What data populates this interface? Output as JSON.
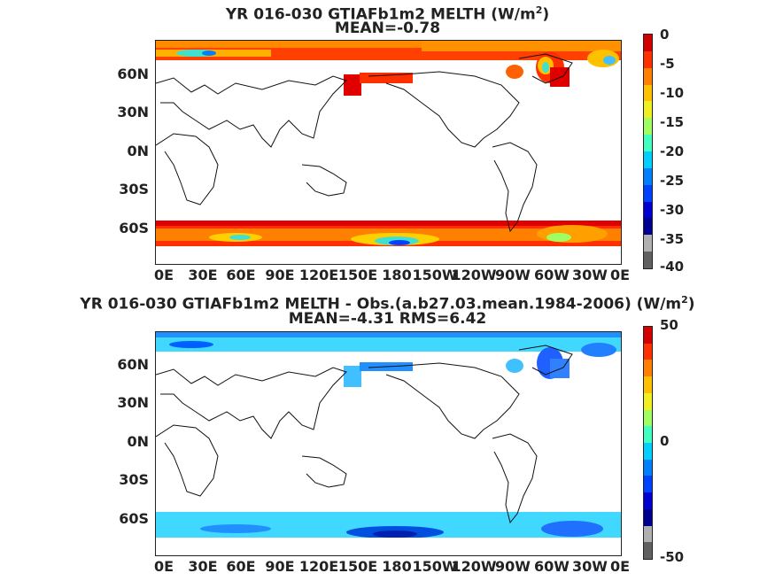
{
  "panels": [
    {
      "title_pre": "YR 016-030 GTIAFb1m2  MELTH (W/m",
      "title_sup": "2",
      "title_post": ")",
      "subtitle": "MEAN=-0.78",
      "colorbar": {
        "ticks": [
          "0",
          "-5",
          "-10",
          "-15",
          "-20",
          "-25",
          "-30",
          "-35",
          "-40"
        ],
        "colors": [
          "#d40000",
          "#ff3000",
          "#ff8000",
          "#ffc000",
          "#f0f020",
          "#a0ff60",
          "#40ffc0",
          "#00d0ff",
          "#0080ff",
          "#0040ff",
          "#0000d0",
          "#000090",
          "#b0b0b0",
          "#606060"
        ]
      }
    },
    {
      "title_pre": "YR 016-030 GTIAFb1m2 MELTH - Obs.(a.b27.03.mean.1984-2006) (W/m",
      "title_sup": "2",
      "title_post": ")",
      "subtitle": "MEAN=-4.31 RMS=6.42",
      "colorbar": {
        "ticks": [
          "50",
          "0",
          "-50"
        ],
        "colors": [
          "#d40000",
          "#ff3000",
          "#ff8000",
          "#ffc000",
          "#f0f020",
          "#a0ff60",
          "#40ffc0",
          "#00d0ff",
          "#0080ff",
          "#0040ff",
          "#0000d0",
          "#000090",
          "#b0b0b0",
          "#606060"
        ]
      }
    }
  ],
  "lat_ticks": [
    "60N",
    "30N",
    "0N",
    "30S",
    "60S"
  ],
  "lon_ticks": [
    "0E",
    "30E",
    "60E",
    "90E",
    "120E",
    "150E",
    "180",
    "150W",
    "120W",
    "90W",
    "60W",
    "30W",
    "0E"
  ]
}
